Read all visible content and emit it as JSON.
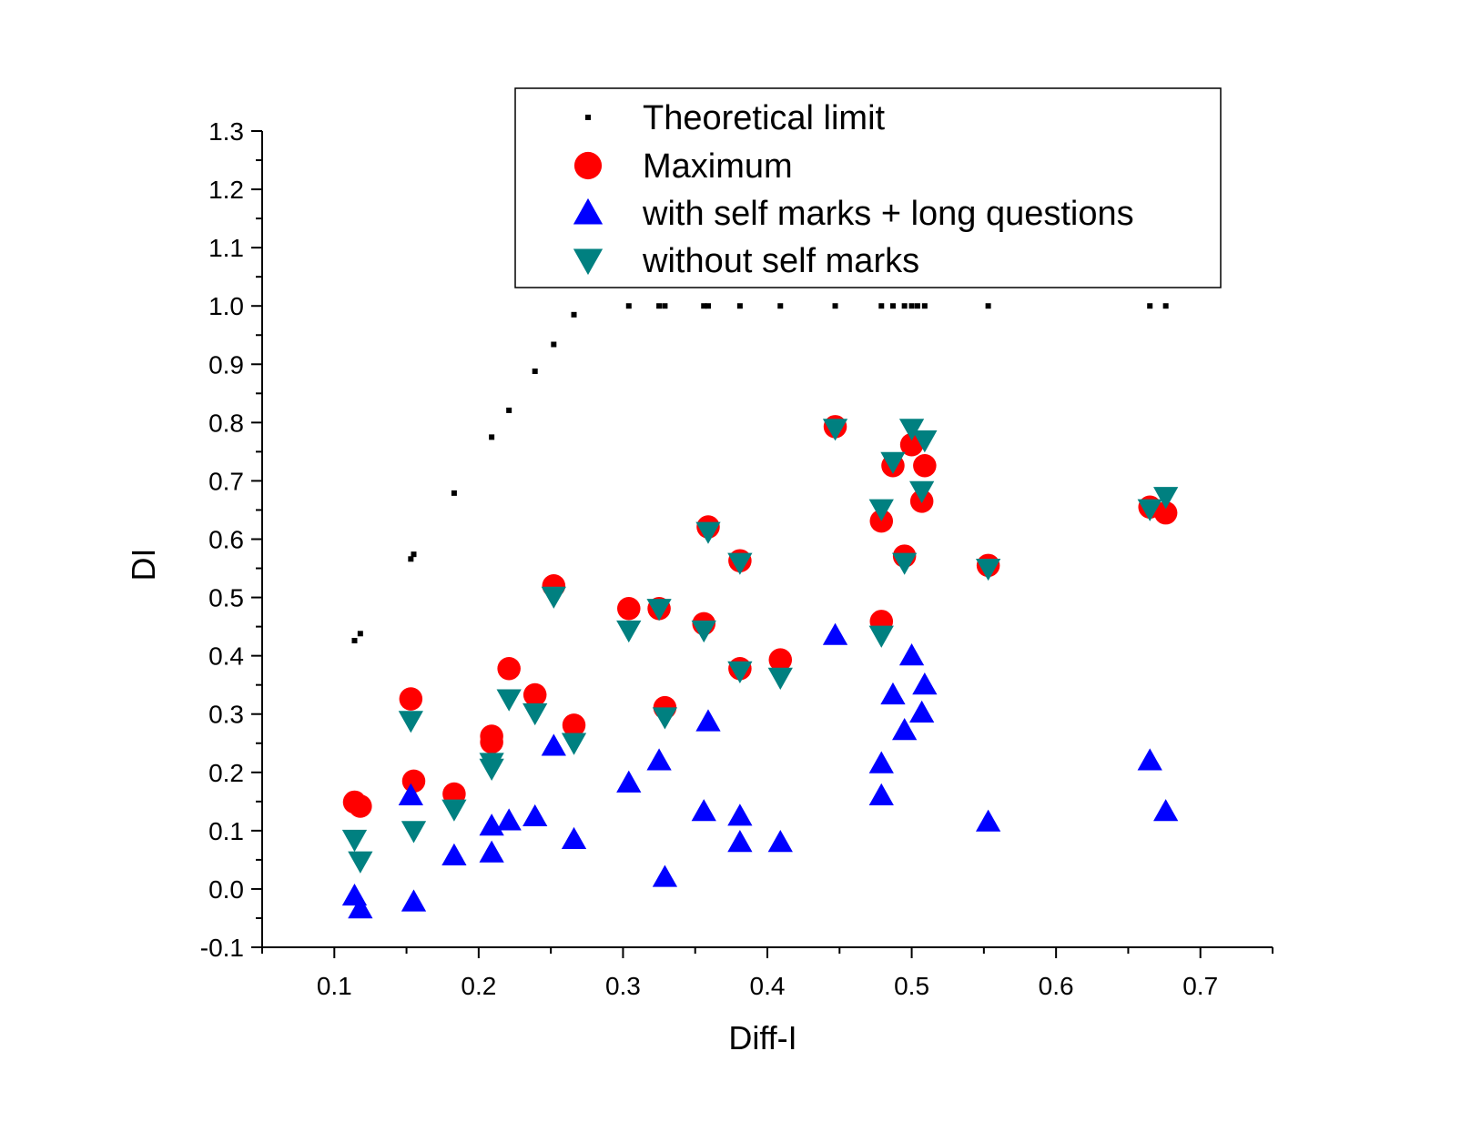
{
  "chart_data": {
    "type": "scatter",
    "xlabel": "Diff-I",
    "ylabel": "DI",
    "xlim": [
      0.05,
      0.75
    ],
    "ylim": [
      -0.1,
      1.3
    ],
    "x_ticks": [
      "0.1",
      "0.2",
      "0.3",
      "0.4",
      "0.5",
      "0.6",
      "0.7"
    ],
    "x_tick_values": [
      0.1,
      0.2,
      0.3,
      0.4,
      0.5,
      0.6,
      0.7
    ],
    "y_ticks": [
      "-0.1",
      "0.0",
      "0.1",
      "0.2",
      "0.3",
      "0.4",
      "0.5",
      "0.6",
      "0.7",
      "0.8",
      "0.9",
      "1.0",
      "1.1",
      "1.2",
      "1.3"
    ],
    "y_tick_values": [
      -0.1,
      0.0,
      0.1,
      0.2,
      0.3,
      0.4,
      0.5,
      0.6,
      0.7,
      0.8,
      0.9,
      1.0,
      1.1,
      1.2,
      1.3
    ],
    "legend_position": "top-right",
    "grid": false,
    "series": [
      {
        "name": "Theoretical limit",
        "marker": "square",
        "color": "#000000",
        "points": [
          [
            0.114,
            0.426
          ],
          [
            0.118,
            0.438
          ],
          [
            0.153,
            0.566
          ],
          [
            0.155,
            0.574
          ],
          [
            0.183,
            0.679
          ],
          [
            0.209,
            0.775
          ],
          [
            0.221,
            0.821
          ],
          [
            0.239,
            0.888
          ],
          [
            0.252,
            0.934
          ],
          [
            0.266,
            0.985
          ],
          [
            0.304,
            1.0
          ],
          [
            0.325,
            1.0
          ],
          [
            0.329,
            1.0
          ],
          [
            0.356,
            1.0
          ],
          [
            0.359,
            1.0
          ],
          [
            0.381,
            1.0
          ],
          [
            0.409,
            1.0
          ],
          [
            0.447,
            1.0
          ],
          [
            0.479,
            1.0
          ],
          [
            0.487,
            1.0
          ],
          [
            0.495,
            1.0
          ],
          [
            0.5,
            1.0
          ],
          [
            0.504,
            1.0
          ],
          [
            0.509,
            1.0
          ],
          [
            0.553,
            1.0
          ],
          [
            0.665,
            1.0
          ],
          [
            0.676,
            1.0
          ]
        ]
      },
      {
        "name": "Maximum",
        "marker": "circle",
        "color": "#ff0000",
        "points": [
          [
            0.114,
            0.149
          ],
          [
            0.118,
            0.142
          ],
          [
            0.153,
            0.326
          ],
          [
            0.155,
            0.185
          ],
          [
            0.183,
            0.163
          ],
          [
            0.209,
            0.262
          ],
          [
            0.209,
            0.252
          ],
          [
            0.221,
            0.378
          ],
          [
            0.239,
            0.333
          ],
          [
            0.252,
            0.52
          ],
          [
            0.266,
            0.281
          ],
          [
            0.304,
            0.481
          ],
          [
            0.325,
            0.481
          ],
          [
            0.329,
            0.311
          ],
          [
            0.356,
            0.455
          ],
          [
            0.359,
            0.621
          ],
          [
            0.381,
            0.378
          ],
          [
            0.381,
            0.563
          ],
          [
            0.409,
            0.393
          ],
          [
            0.447,
            0.793
          ],
          [
            0.479,
            0.631
          ],
          [
            0.479,
            0.459
          ],
          [
            0.487,
            0.726
          ],
          [
            0.495,
            0.571
          ],
          [
            0.5,
            0.762
          ],
          [
            0.507,
            0.665
          ],
          [
            0.509,
            0.726
          ],
          [
            0.553,
            0.555
          ],
          [
            0.665,
            0.655
          ],
          [
            0.676,
            0.645
          ]
        ]
      },
      {
        "name": "with self marks + long questions",
        "marker": "triangle-up",
        "color": "#0000ff",
        "points": [
          [
            0.114,
            -0.012
          ],
          [
            0.118,
            -0.034
          ],
          [
            0.153,
            0.16
          ],
          [
            0.155,
            -0.022
          ],
          [
            0.183,
            0.057
          ],
          [
            0.209,
            0.108
          ],
          [
            0.209,
            0.062
          ],
          [
            0.221,
            0.117
          ],
          [
            0.239,
            0.124
          ],
          [
            0.252,
            0.245
          ],
          [
            0.266,
            0.085
          ],
          [
            0.304,
            0.182
          ],
          [
            0.325,
            0.22
          ],
          [
            0.329,
            0.02
          ],
          [
            0.356,
            0.133
          ],
          [
            0.359,
            0.287
          ],
          [
            0.381,
            0.125
          ],
          [
            0.381,
            0.08
          ],
          [
            0.409,
            0.08
          ],
          [
            0.447,
            0.435
          ],
          [
            0.479,
            0.215
          ],
          [
            0.479,
            0.16
          ],
          [
            0.487,
            0.333
          ],
          [
            0.495,
            0.272
          ],
          [
            0.5,
            0.4
          ],
          [
            0.507,
            0.302
          ],
          [
            0.509,
            0.35
          ],
          [
            0.553,
            0.115
          ],
          [
            0.665,
            0.22
          ],
          [
            0.676,
            0.133
          ]
        ]
      },
      {
        "name": "without self marks",
        "marker": "triangle-down",
        "color": "#008080",
        "points": [
          [
            0.114,
            0.085
          ],
          [
            0.118,
            0.048
          ],
          [
            0.153,
            0.289
          ],
          [
            0.155,
            0.1
          ],
          [
            0.183,
            0.137
          ],
          [
            0.209,
            0.217
          ],
          [
            0.209,
            0.207
          ],
          [
            0.221,
            0.326
          ],
          [
            0.239,
            0.302
          ],
          [
            0.252,
            0.502
          ],
          [
            0.266,
            0.251
          ],
          [
            0.304,
            0.444
          ],
          [
            0.325,
            0.481
          ],
          [
            0.329,
            0.295
          ],
          [
            0.356,
            0.444
          ],
          [
            0.359,
            0.613
          ],
          [
            0.381,
            0.374
          ],
          [
            0.381,
            0.56
          ],
          [
            0.409,
            0.363
          ],
          [
            0.447,
            0.79
          ],
          [
            0.479,
            0.652
          ],
          [
            0.479,
            0.435
          ],
          [
            0.487,
            0.733
          ],
          [
            0.495,
            0.56
          ],
          [
            0.5,
            0.79
          ],
          [
            0.507,
            0.683
          ],
          [
            0.509,
            0.77
          ],
          [
            0.553,
            0.55
          ],
          [
            0.665,
            0.652
          ],
          [
            0.676,
            0.673
          ]
        ]
      }
    ]
  }
}
